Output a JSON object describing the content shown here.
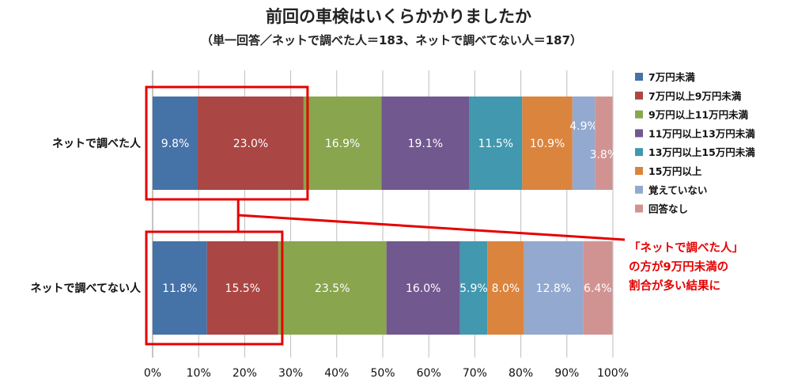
{
  "chart_data": {
    "type": "bar",
    "orientation": "horizontal",
    "stacked": "percent",
    "title": "前回の車検はいくらかかりましたか",
    "subtitle": "（単一回答／ネットで調べた人＝183、ネットで調べてない人＝187）",
    "categories": [
      "ネットで調べた人",
      "ネットで調べてない人"
    ],
    "series": [
      {
        "name": "7万円未満",
        "color": "#4572a7",
        "values": [
          9.8,
          11.8
        ],
        "labels": [
          "9.8%",
          "11.8%"
        ]
      },
      {
        "name": "7万円以上9万円未満",
        "color": "#aa4643",
        "values": [
          23.0,
          15.5
        ],
        "labels": [
          "23.0%",
          "15.5%"
        ]
      },
      {
        "name": "9万円以上11万円未満",
        "color": "#89a54e",
        "values": [
          16.9,
          23.5
        ],
        "labels": [
          "16.9%",
          "23.5%"
        ]
      },
      {
        "name": "11万円以上13万円未満",
        "color": "#71588f",
        "values": [
          19.1,
          16.0
        ],
        "labels": [
          "19.1%",
          "16.0%"
        ]
      },
      {
        "name": "13万円以上15万円未満",
        "color": "#4198af",
        "values": [
          11.5,
          5.9
        ],
        "labels": [
          "11.5%",
          "5.9%"
        ]
      },
      {
        "name": "15万円以上",
        "color": "#db843d",
        "values": [
          10.9,
          8.0
        ],
        "labels": [
          "10.9%",
          "8.0%"
        ]
      },
      {
        "name": "覚えていない",
        "color": "#93a9cf",
        "values": [
          4.9,
          12.8
        ],
        "labels": [
          "4.9%",
          "12.8%"
        ]
      },
      {
        "name": "回答なし",
        "color": "#d19392",
        "values": [
          3.8,
          6.4
        ],
        "labels": [
          "3.8%",
          "6.4%"
        ]
      }
    ],
    "xlim": [
      0,
      100
    ],
    "xticks": [
      "0%",
      "10%",
      "20%",
      "30%",
      "40%",
      "50%",
      "60%",
      "70%",
      "80%",
      "90%",
      "100%"
    ],
    "grid": true,
    "legend_position": "right",
    "highlight": {
      "color": "#e60000",
      "range": [
        0,
        9
      ],
      "annotation": [
        "「ネットで調べた人」",
        "の方が9万円未満の",
        "割合が多い結果に"
      ]
    }
  }
}
